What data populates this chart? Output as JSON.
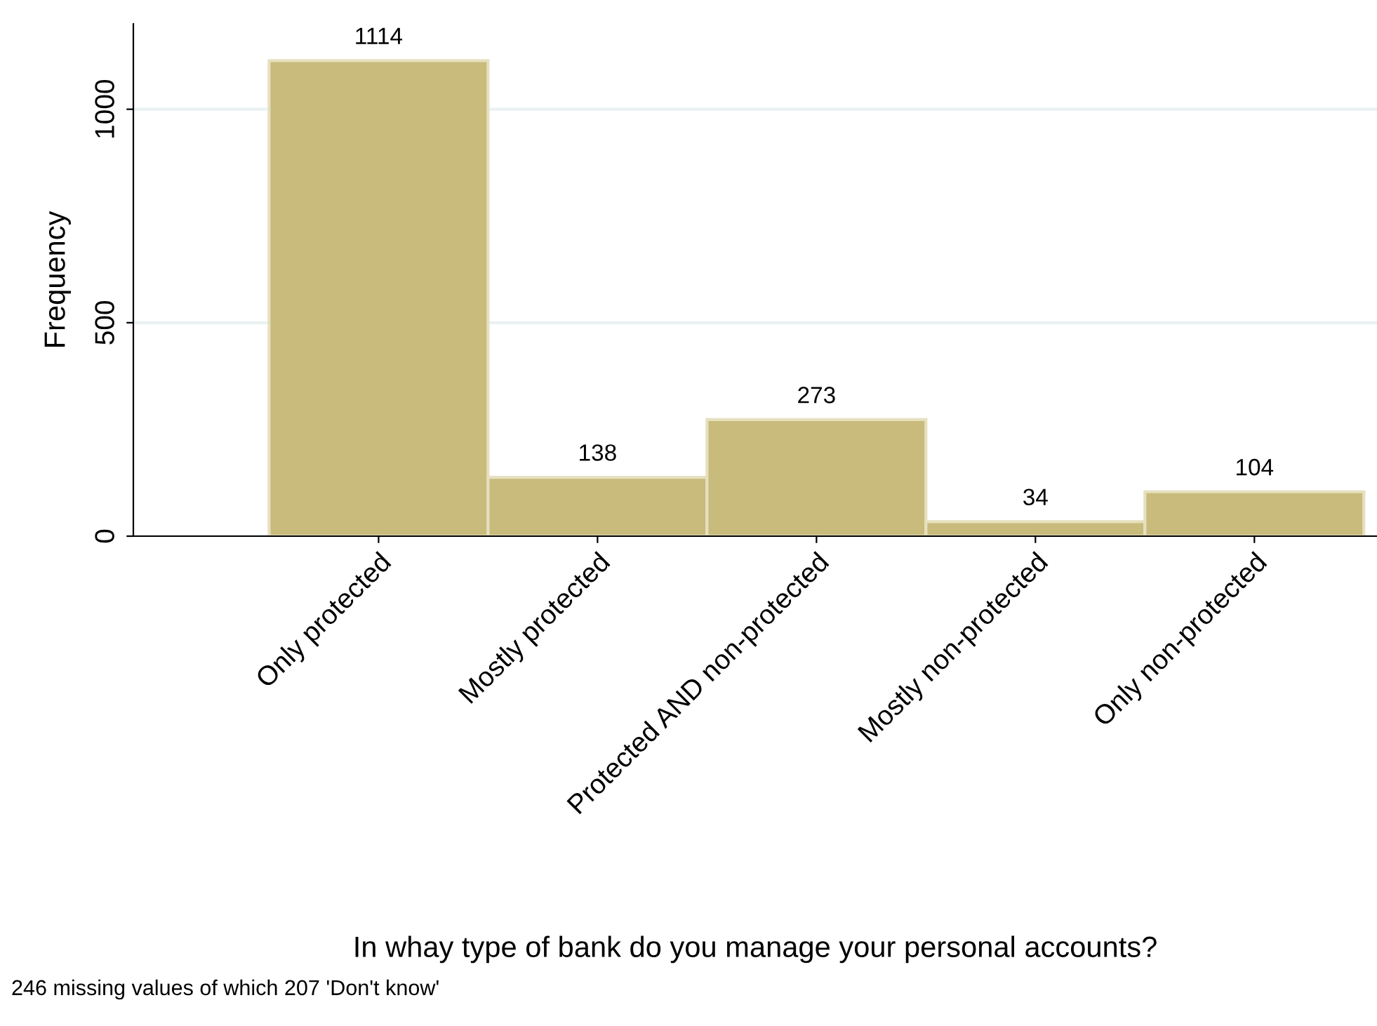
{
  "chart_data": {
    "type": "bar",
    "xlabel": "In whay type of bank do you manage your personal accounts?",
    "ylabel": "Frequency",
    "categories": [
      "Only protected",
      "Mostly protected",
      "Protected AND non-protected",
      "Mostly non-protected",
      "Only non-protected"
    ],
    "values": [
      1114,
      138,
      273,
      34,
      104
    ],
    "color": "#c8bb7c",
    "ylim": [
      0,
      1200
    ],
    "yticks": [
      0,
      500,
      1000
    ],
    "grid": "y",
    "data_labels": true,
    "annotations": [
      "246 missing values of which 207 'Don't know'"
    ]
  }
}
